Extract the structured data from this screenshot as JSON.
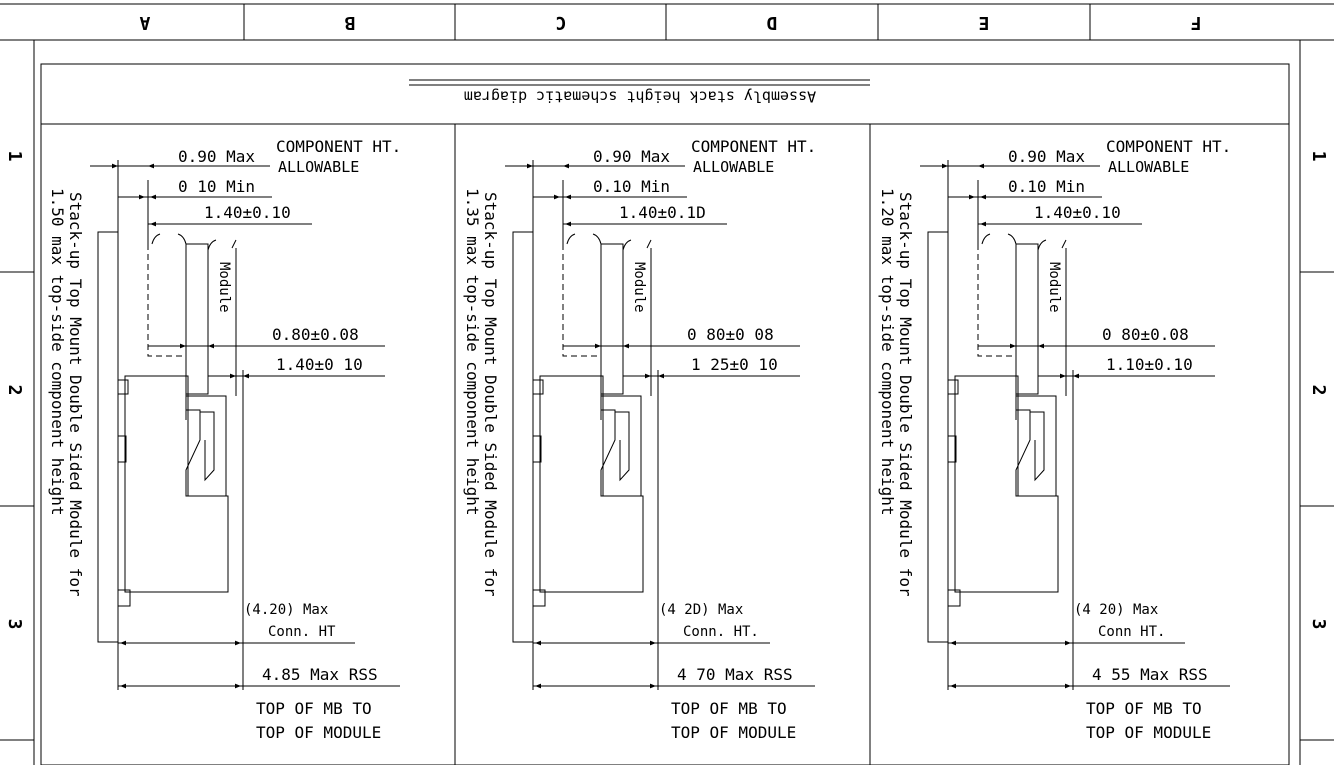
{
  "title": "Assembly stack height schematic diagram",
  "zone_columns": [
    "A",
    "B",
    "C",
    "D",
    "E",
    "F"
  ],
  "zone_rows": [
    "1",
    "2",
    "3"
  ],
  "views": [
    {
      "stack_label": "Stack-up Top Mount Double Sided Module for",
      "stack_sublabel": "1.50 max top-side component height",
      "comp_ht_max": "0.90 Max",
      "comp_ht_label_1": "COMPONENT HT.",
      "comp_ht_label_2": "ALLOWABLE",
      "min_gap": "0 10 Min",
      "dim_a": "1.40±0.10",
      "module_label": "Module",
      "dim_b": "0.80±0.08",
      "dim_c": "1.40±0 10",
      "conn_ht": "(4.20) Max",
      "conn_label": "Conn. HT",
      "rss": "4.85 Max RSS",
      "note_1": "TOP OF MB TO",
      "note_2": "TOP OF MODULE"
    },
    {
      "stack_label": "Stack-up Top Mount Double Sided Module for",
      "stack_sublabel": "1.35 max top-side component height",
      "comp_ht_max": "0.90 Max",
      "comp_ht_label_1": "COMPONENT HT.",
      "comp_ht_label_2": "ALLOWABLE",
      "min_gap": "0.10 Min",
      "dim_a": "1.40±0.1D",
      "module_label": "Module",
      "dim_b": "0 80±0 08",
      "dim_c": "1 25±0 10",
      "conn_ht": "(4 2D) Max",
      "conn_label": "Conn. HT.",
      "rss": "4 70 Max RSS",
      "note_1": "TOP OF MB TO",
      "note_2": "TOP OF MODULE"
    },
    {
      "stack_label": "Stack-up Top Mount Double Sided Module for",
      "stack_sublabel": "1.20 max top-side component height",
      "comp_ht_max": "0.90 Max",
      "comp_ht_label_1": "COMPONENT HT.",
      "comp_ht_label_2": "ALLOWABLE",
      "min_gap": "0.10 Min",
      "dim_a": "1.40±0.10",
      "module_label": "Module",
      "dim_b": "0 80±0.08",
      "dim_c": "1.10±0.10",
      "conn_ht": "(4 20) Max",
      "conn_label": "Conn HT.",
      "rss": "4 55 Max RSS",
      "note_1": "TOP OF MB TO",
      "note_2": "TOP OF MODULE"
    }
  ]
}
